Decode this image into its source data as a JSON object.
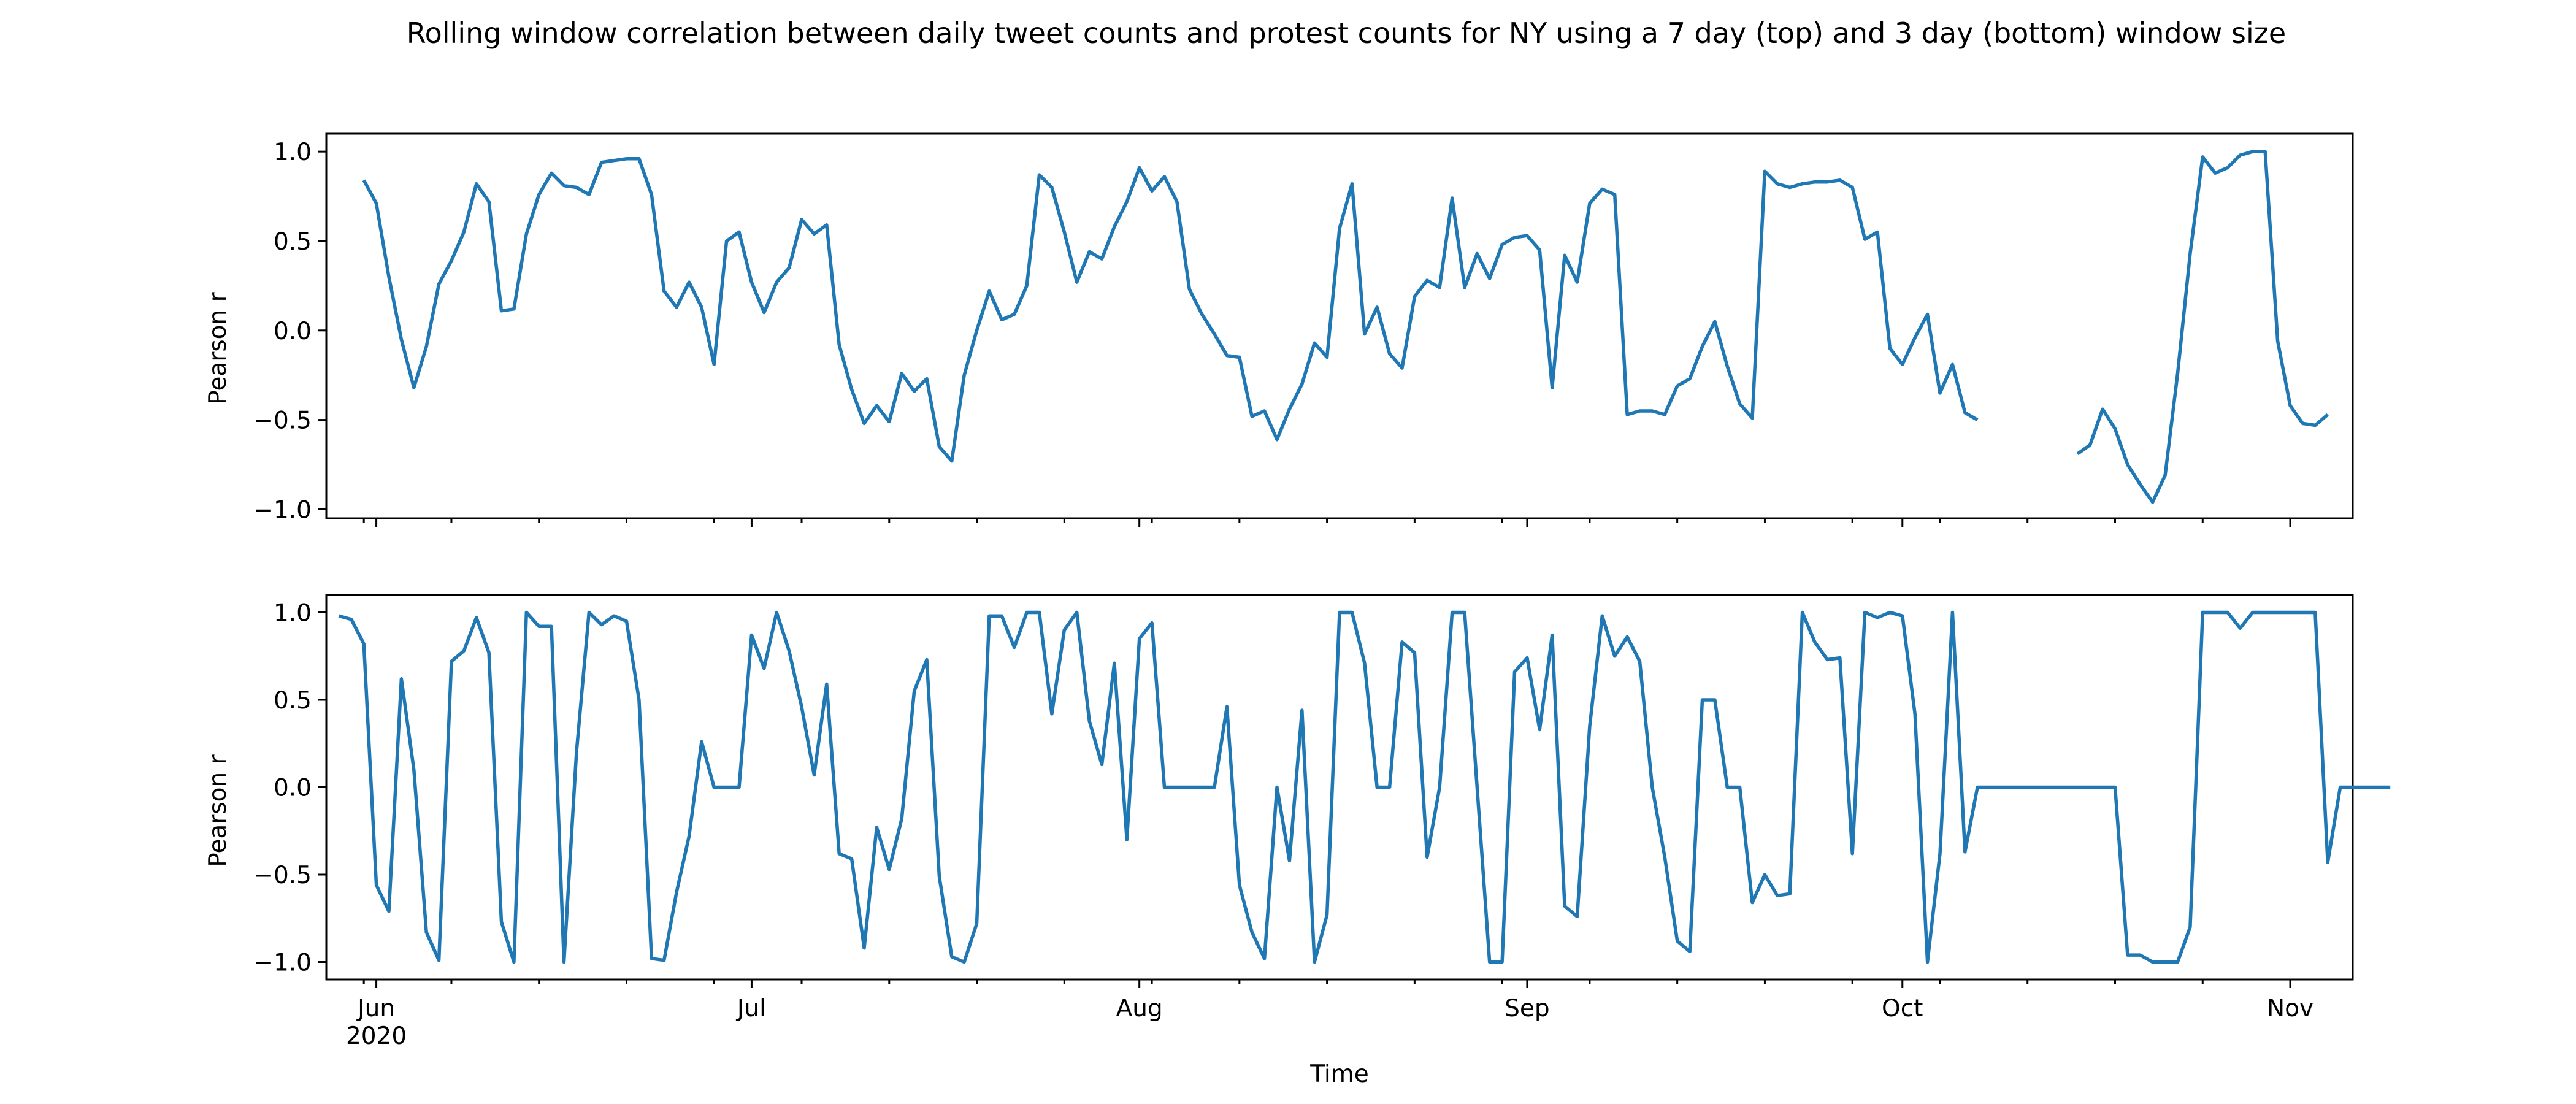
{
  "chart_data": {
    "title": "Rolling window correlation between daily tweet counts and protest counts for NY using a 7 day (top) and 3 day (bottom) window size",
    "xlabel": "Time",
    "x_ticks": [
      {
        "date": "2020-06-01",
        "label": "Jun",
        "sublabel": "2020"
      },
      {
        "date": "2020-07-01",
        "label": "Jul"
      },
      {
        "date": "2020-08-01",
        "label": "Aug"
      },
      {
        "date": "2020-09-01",
        "label": "Sep"
      },
      {
        "date": "2020-10-01",
        "label": "Oct"
      },
      {
        "date": "2020-11-01",
        "label": "Nov"
      }
    ],
    "xlim": [
      "2020-05-28",
      "2020-11-06"
    ],
    "line_color": "#1f77b4",
    "panels": [
      {
        "type": "line",
        "window_days": 7,
        "ylabel": "Pearson r",
        "ylim": [
          -1.05,
          1.1
        ],
        "yticks": [
          -1.0,
          -0.5,
          0.0,
          0.5,
          1.0
        ],
        "y_tick_labels": [
          "−1.0",
          "−0.5",
          "0.0",
          "0.5",
          "1.0"
        ],
        "start_date": "2020-05-31",
        "values": [
          0.84,
          0.71,
          0.3,
          -0.05,
          -0.32,
          -0.09,
          0.26,
          0.39,
          0.55,
          0.82,
          0.72,
          0.11,
          0.12,
          0.54,
          0.76,
          0.88,
          0.81,
          0.8,
          0.76,
          0.94,
          0.95,
          0.96,
          0.96,
          0.76,
          0.22,
          0.13,
          0.27,
          0.13,
          -0.19,
          0.5,
          0.55,
          0.27,
          0.1,
          0.27,
          0.35,
          0.62,
          0.54,
          0.59,
          -0.08,
          -0.33,
          -0.52,
          -0.42,
          -0.51,
          -0.24,
          -0.34,
          -0.27,
          -0.65,
          -0.73,
          -0.25,
          0.0,
          0.22,
          0.06,
          0.09,
          0.25,
          0.87,
          0.8,
          0.55,
          0.27,
          0.44,
          0.4,
          0.58,
          0.72,
          0.91,
          0.78,
          0.86,
          0.72,
          0.23,
          0.09,
          -0.02,
          -0.14,
          -0.15,
          -0.48,
          -0.45,
          -0.61,
          -0.44,
          -0.3,
          -0.07,
          -0.15,
          0.57,
          0.82,
          -0.02,
          0.13,
          -0.13,
          -0.21,
          0.19,
          0.28,
          0.24,
          0.74,
          0.24,
          0.43,
          0.29,
          0.48,
          0.52,
          0.53,
          0.45,
          -0.32,
          0.42,
          0.27,
          0.71,
          0.79,
          0.76,
          -0.47,
          -0.45,
          -0.45,
          -0.47,
          -0.31,
          -0.27,
          -0.09,
          0.05,
          -0.2,
          -0.41,
          -0.49,
          0.89,
          0.82,
          0.8,
          0.82,
          0.83,
          0.83,
          0.84,
          0.8,
          0.51,
          0.55,
          -0.1,
          -0.19,
          -0.04,
          0.09,
          -0.35,
          -0.19,
          -0.46,
          -0.5,
          null,
          null,
          null,
          null,
          null,
          null,
          null,
          -0.69,
          -0.64,
          -0.44,
          -0.55,
          -0.75,
          -0.86,
          -0.96,
          -0.81,
          -0.24,
          0.43,
          0.97,
          0.88,
          0.91,
          0.98,
          1.0,
          1.0,
          -0.06,
          -0.42,
          -0.52,
          -0.53,
          -0.47
        ]
      },
      {
        "type": "line",
        "window_days": 3,
        "ylabel": "Pearson r",
        "ylim": [
          -1.1,
          1.1
        ],
        "yticks": [
          -1.0,
          -0.5,
          0.0,
          0.5,
          1.0
        ],
        "y_tick_labels": [
          "−1.0",
          "−0.5",
          "0.0",
          "0.5",
          "1.0"
        ],
        "start_date": "2020-05-29",
        "values": [
          0.98,
          0.96,
          0.82,
          -0.56,
          -0.71,
          0.62,
          0.1,
          -0.83,
          -0.99,
          0.72,
          0.78,
          0.97,
          0.77,
          -0.77,
          -1.0,
          1.0,
          0.92,
          0.92,
          -1.0,
          0.2,
          1.0,
          0.93,
          0.98,
          0.95,
          0.5,
          -0.98,
          -0.99,
          -0.6,
          -0.28,
          0.26,
          0.0,
          0.0,
          0.0,
          0.87,
          0.68,
          1.0,
          0.78,
          0.46,
          0.07,
          0.59,
          -0.38,
          -0.41,
          -0.92,
          -0.23,
          -0.47,
          -0.18,
          0.55,
          0.73,
          -0.51,
          -0.97,
          -1.0,
          -0.78,
          0.98,
          0.98,
          0.8,
          1.0,
          1.0,
          0.42,
          0.9,
          1.0,
          0.38,
          0.13,
          0.71,
          -0.3,
          0.85,
          0.94,
          0.0,
          0.0,
          0.0,
          0.0,
          0.0,
          0.46,
          -0.56,
          -0.83,
          -0.98,
          0.0,
          -0.42,
          0.44,
          -1.0,
          -0.73,
          1.0,
          1.0,
          0.71,
          0.0,
          0.0,
          0.83,
          0.77,
          -0.4,
          0.0,
          1.0,
          1.0,
          0.0,
          -1.0,
          -1.0,
          0.66,
          0.74,
          0.33,
          0.87,
          -0.68,
          -0.74,
          0.35,
          0.98,
          0.75,
          0.86,
          0.72,
          0.0,
          -0.4,
          -0.88,
          -0.94,
          0.5,
          0.5,
          0.0,
          0.0,
          -0.66,
          -0.5,
          -0.62,
          -0.61,
          1.0,
          0.83,
          0.73,
          0.74,
          -0.38,
          1.0,
          0.97,
          1.0,
          0.98,
          0.42,
          -1.0,
          -0.38,
          1.0,
          -0.37,
          0.0,
          0.0,
          0.0,
          0.0,
          0.0,
          0.0,
          0.0,
          0.0,
          0.0,
          0.0,
          0.0,
          0.0,
          -0.96,
          -0.96,
          -1.0,
          -1.0,
          -1.0,
          -0.8,
          1.0,
          1.0,
          1.0,
          0.91,
          1.0,
          1.0,
          1.0,
          1.0,
          1.0,
          1.0,
          -0.43,
          0.0,
          0.0,
          0.0,
          0.0,
          0.0
        ]
      }
    ]
  }
}
